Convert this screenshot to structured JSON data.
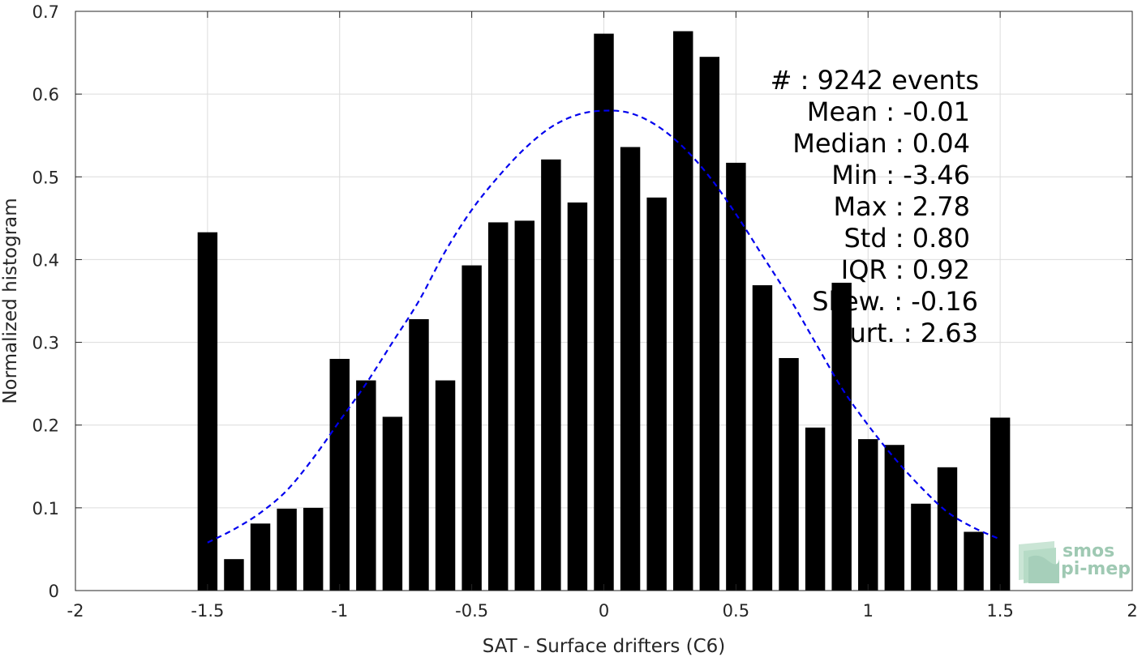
{
  "chart_data": {
    "type": "bar",
    "xlabel": "SAT - Surface drifters (C6)",
    "ylabel": "Normalized histogram",
    "xlim": [
      -2,
      2
    ],
    "ylim": [
      0,
      0.7
    ],
    "xticks": [
      -2,
      -1.5,
      -1,
      -0.5,
      0,
      0.5,
      1,
      1.5,
      2
    ],
    "xtick_labels": [
      "-2",
      "-1.5",
      "-1",
      "-0.5",
      "0",
      "0.5",
      "1",
      "1.5",
      "2"
    ],
    "yticks": [
      0,
      0.1,
      0.2,
      0.3,
      0.4,
      0.5,
      0.6,
      0.7
    ],
    "ytick_labels": [
      "0",
      "0.1",
      "0.2",
      "0.3",
      "0.4",
      "0.5",
      "0.6",
      "0.7"
    ],
    "grid": true,
    "bar_width": 0.075,
    "bar_color": "#000000",
    "x": [
      -1.5,
      -1.4,
      -1.3,
      -1.2,
      -1.1,
      -1.0,
      -0.9,
      -0.8,
      -0.7,
      -0.6,
      -0.5,
      -0.4,
      -0.3,
      -0.2,
      -0.1,
      0.0,
      0.1,
      0.2,
      0.3,
      0.4,
      0.5,
      0.6,
      0.7,
      0.8,
      0.9,
      1.0,
      1.1,
      1.2,
      1.3,
      1.4,
      1.5
    ],
    "values": [
      0.433,
      0.038,
      0.081,
      0.099,
      0.1,
      0.28,
      0.254,
      0.21,
      0.328,
      0.254,
      0.393,
      0.445,
      0.447,
      0.521,
      0.469,
      0.673,
      0.536,
      0.475,
      0.676,
      0.645,
      0.517,
      0.369,
      0.281,
      0.197,
      0.372,
      0.183,
      0.176,
      0.105,
      0.149,
      0.071,
      0.209
    ],
    "fit_curve": {
      "color": "#0000ee",
      "style": "dashed",
      "x": [
        -1.5,
        -1.4,
        -1.3,
        -1.2,
        -1.1,
        -1.0,
        -0.9,
        -0.8,
        -0.7,
        -0.6,
        -0.5,
        -0.4,
        -0.3,
        -0.2,
        -0.1,
        0.0,
        0.1,
        0.2,
        0.3,
        0.4,
        0.5,
        0.6,
        0.7,
        0.8,
        0.9,
        1.0,
        1.1,
        1.2,
        1.3,
        1.4,
        1.5
      ],
      "y": [
        0.058,
        0.074,
        0.094,
        0.121,
        0.16,
        0.205,
        0.25,
        0.3,
        0.35,
        0.41,
        0.46,
        0.5,
        0.534,
        0.56,
        0.575,
        0.58,
        0.577,
        0.562,
        0.536,
        0.5,
        0.455,
        0.405,
        0.355,
        0.3,
        0.245,
        0.2,
        0.16,
        0.125,
        0.095,
        0.076,
        0.062
      ]
    },
    "annotations": [
      "#  : 9242 events",
      "Mean : -0.01",
      "Median : 0.04",
      "Min : -3.46",
      "Max : 2.78",
      "Std : 0.80",
      "IQR : 0.92",
      "Skew. : -0.16",
      "Kurt. : 2.63"
    ]
  },
  "logo": {
    "line1": "smos",
    "line2": "pi-mep"
  }
}
